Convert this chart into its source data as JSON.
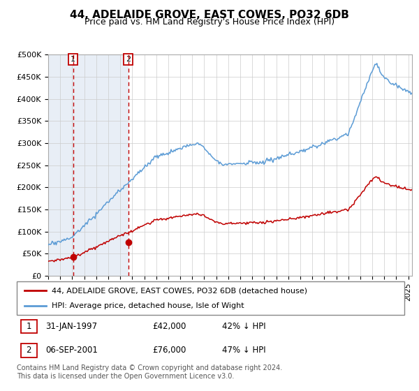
{
  "title": "44, ADELAIDE GROVE, EAST COWES, PO32 6DB",
  "subtitle": "Price paid vs. HM Land Registry's House Price Index (HPI)",
  "ylabel_ticks": [
    "£0",
    "£50K",
    "£100K",
    "£150K",
    "£200K",
    "£250K",
    "£300K",
    "£350K",
    "£400K",
    "£450K",
    "£500K"
  ],
  "ylim": [
    0,
    500000
  ],
  "xlim_start": 1995.0,
  "xlim_end": 2025.3,
  "sale1_date": 1997.08,
  "sale1_price": 42000,
  "sale1_label": "1",
  "sale2_date": 2001.67,
  "sale2_price": 76000,
  "sale2_label": "2",
  "legend_line1": "44, ADELAIDE GROVE, EAST COWES, PO32 6DB (detached house)",
  "legend_line2": "HPI: Average price, detached house, Isle of Wight",
  "footer": "Contains HM Land Registry data © Crown copyright and database right 2024.\nThis data is licensed under the Open Government Licence v3.0.",
  "hpi_color": "#5b9bd5",
  "price_color": "#c00000",
  "bg_shade_color": "#dce6f1",
  "vline_color": "#c00000"
}
